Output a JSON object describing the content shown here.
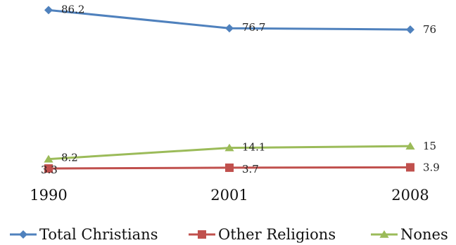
{
  "chart_data": {
    "type": "line",
    "x": [
      "1990",
      "2001",
      "2008"
    ],
    "series": [
      {
        "name": "Total Christians",
        "values": [
          86.2,
          76.7,
          76
        ],
        "labels": [
          "86.2",
          "76.7",
          "76"
        ],
        "color": "#4F81BD",
        "marker": "diamond"
      },
      {
        "name": "Other Religions",
        "values": [
          3.3,
          3.7,
          3.9
        ],
        "labels": [
          "3.3",
          "3.7",
          "3.9"
        ],
        "color": "#C0504D",
        "marker": "square"
      },
      {
        "name": "Nones",
        "values": [
          8.2,
          14.1,
          15
        ],
        "labels": [
          "8.2",
          "14.1",
          "15"
        ],
        "color": "#9BBB59",
        "marker": "triangle"
      }
    ],
    "ylim": [
      0,
      90
    ],
    "grid": false,
    "legend": "bottom"
  }
}
